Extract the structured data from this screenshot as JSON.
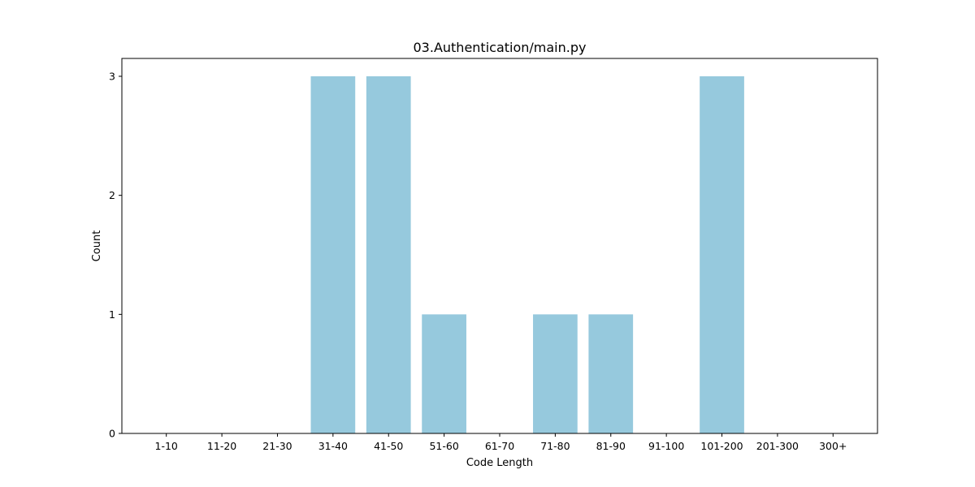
{
  "chart_data": {
    "type": "bar",
    "title": "03.Authentication/main.py",
    "xlabel": "Code Length",
    "ylabel": "Count",
    "categories": [
      "1-10",
      "11-20",
      "21-30",
      "31-40",
      "41-50",
      "51-60",
      "61-70",
      "71-80",
      "81-90",
      "91-100",
      "101-200",
      "201-300",
      "300+"
    ],
    "values": [
      0,
      0,
      0,
      3,
      3,
      1,
      0,
      1,
      1,
      0,
      3,
      0,
      0
    ],
    "ylim": [
      0,
      3.15
    ],
    "yticks": [
      "0",
      "1",
      "2",
      "3"
    ],
    "bar_color": "#96c9dd",
    "grid": false,
    "legend": "none"
  }
}
